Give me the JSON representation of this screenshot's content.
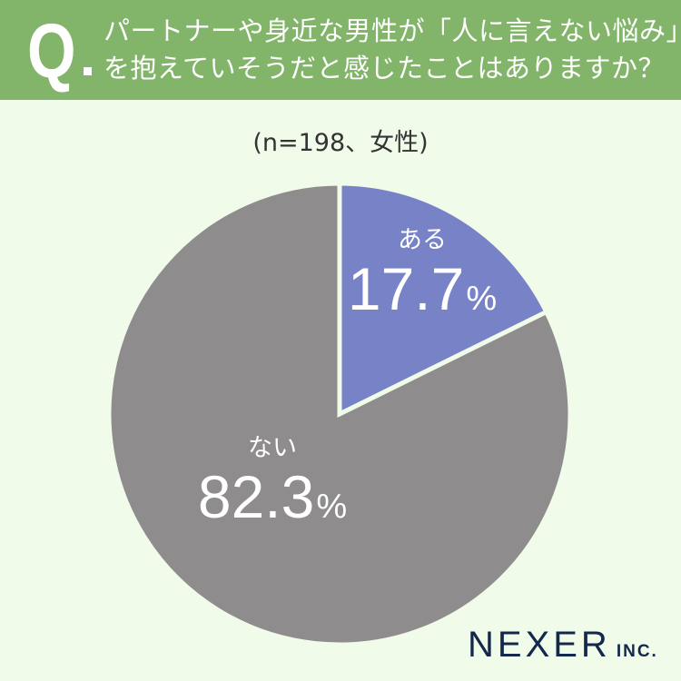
{
  "header": {
    "q_mark": "Q",
    "question_line1": "パートナーや身近な男性が「人に言えない悩み」",
    "question_line2": "を抱えていそうだと感じたことはありますか？"
  },
  "sample_note": "(n=198、女性)",
  "colors": {
    "header_bg": "#82b56a",
    "page_bg": "#f0fbea",
    "aru": "#7882c6",
    "nai": "#8e8c8c",
    "logo": "#13284a"
  },
  "chart_data": {
    "type": "pie",
    "title": "パートナーや身近な男性が「人に言えない悩み」を抱えていそうだと感じたことはありますか？",
    "subtitle": "(n=198、女性)",
    "categories": [
      "ある",
      "ない"
    ],
    "values": [
      17.7,
      82.3
    ],
    "unit": "%",
    "start_angle": "12 o'clock",
    "direction": "clockwise",
    "legend": "none (labels inside slices)",
    "colors": [
      "#7882c6",
      "#8e8c8c"
    ]
  },
  "labels": {
    "aru": {
      "category": "ある",
      "value": "17.7",
      "unit": "%"
    },
    "nai": {
      "category": "ない",
      "value": "82.3",
      "unit": "%"
    }
  },
  "logo": {
    "brand": "NEXER",
    "suffix": "INC."
  }
}
